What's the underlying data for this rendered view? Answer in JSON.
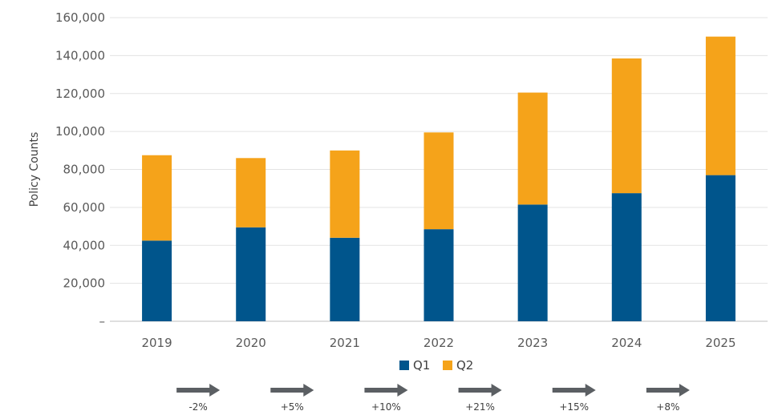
{
  "chart_data": {
    "type": "bar",
    "stacked": true,
    "title": "",
    "xlabel": "",
    "ylabel": "Policy Counts",
    "ylim": [
      0,
      160000
    ],
    "yticks": [
      0,
      20000,
      40000,
      60000,
      80000,
      100000,
      120000,
      140000,
      160000
    ],
    "ytick_labels": [
      "–",
      "20,000",
      "40,000",
      "60,000",
      "80,000",
      "100,000",
      "120,000",
      "140,000",
      "160,000"
    ],
    "grid": true,
    "legend_position": "bottom",
    "categories": [
      "2019",
      "2020",
      "2021",
      "2022",
      "2023",
      "2024",
      "2025"
    ],
    "series": [
      {
        "name": "Q1",
        "color": "#00558C",
        "values": [
          42500,
          49500,
          44000,
          48500,
          61500,
          67500,
          77000
        ]
      },
      {
        "name": "Q2",
        "color": "#F5A31A",
        "values": [
          45000,
          36500,
          46000,
          51000,
          59000,
          71000,
          73000
        ]
      }
    ],
    "changes": [
      "-2%",
      "+5%",
      "+10%",
      "+21%",
      "+15%",
      "+8%"
    ],
    "arrow_color": "#5B5F63"
  }
}
